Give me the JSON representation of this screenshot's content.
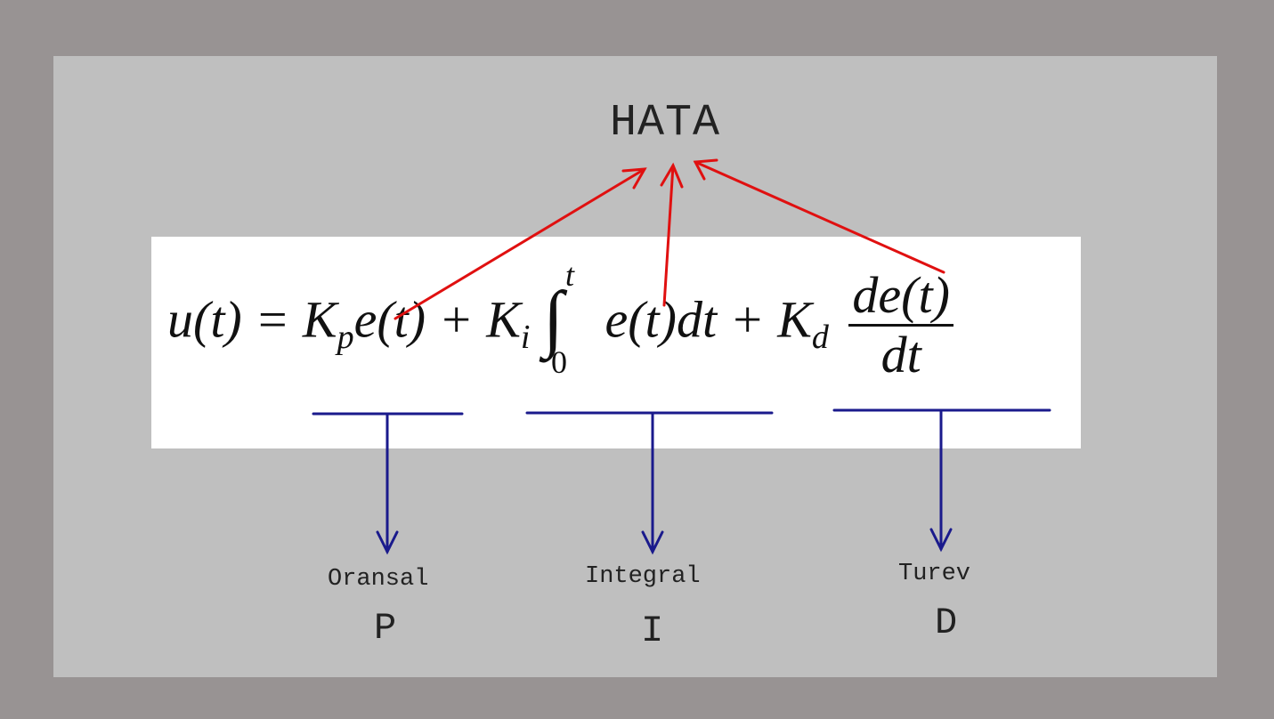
{
  "diagram": {
    "title": "HATA",
    "formula": {
      "lhs": "u(t) =",
      "k_p": "K",
      "k_p_sub": "p",
      "e_t_1": "e(t) +",
      "k_i": "K",
      "k_i_sub": "i",
      "integral_sign": "∫",
      "upper_limit": "t",
      "lower_limit": "0",
      "integrand": "e(t)dt +",
      "k_d": "K",
      "k_d_sub": "d",
      "numerator": "de(t)",
      "denominator": "dt"
    },
    "terms": [
      {
        "label": "Oransal",
        "letter": "P"
      },
      {
        "label": "Integral",
        "letter": "I"
      },
      {
        "label": "Turev",
        "letter": "D"
      }
    ],
    "colors": {
      "outer_background": "#989393",
      "panel": "#bfbfbf",
      "formula_box": "#ffffff",
      "error_arrows": "#e01010",
      "term_arrows": "#1a1a8c",
      "text": "#222222"
    }
  }
}
